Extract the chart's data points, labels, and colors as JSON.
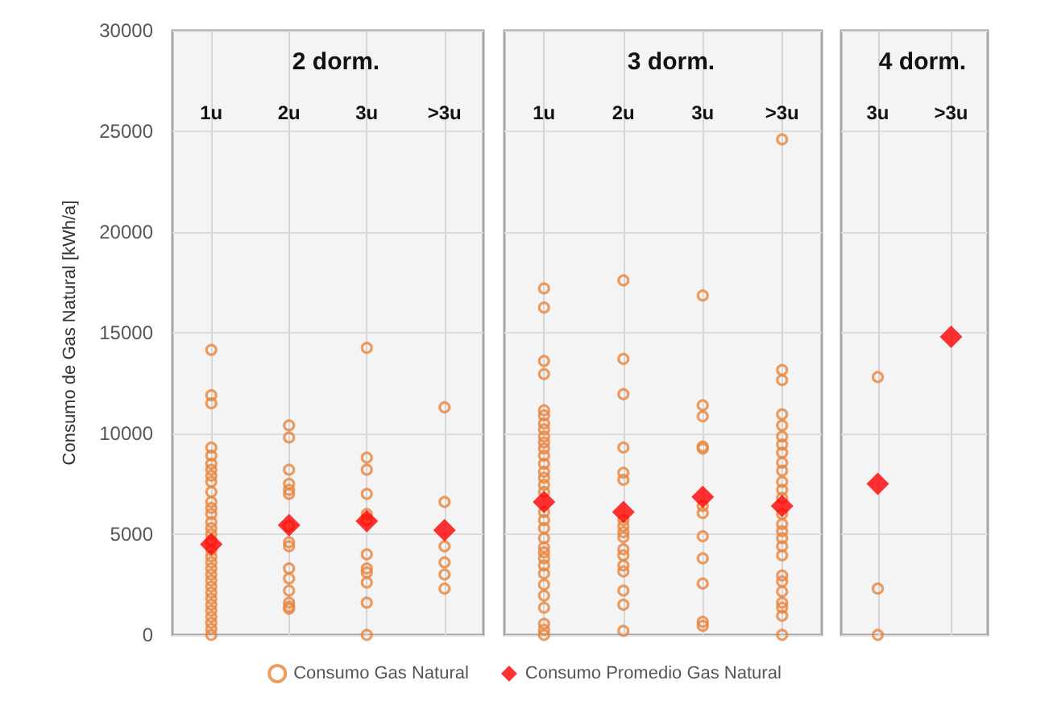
{
  "chart_data": [
    {
      "type": "scatter",
      "title": "2 dorm.",
      "ylabel": "Consumo de Gas Natural [kWh/a]",
      "categories": [
        "1u",
        "2u",
        "3u",
        ">3u"
      ],
      "ylim": [
        0,
        30000
      ],
      "yticks": [
        0,
        5000,
        10000,
        15000,
        20000,
        25000,
        30000
      ],
      "grid": true,
      "legend": "bottom",
      "series": [
        {
          "name": "Consumo Gas Natural",
          "color": "#e8843c",
          "marker": "circle",
          "x": [
            "1u",
            "1u",
            "1u",
            "1u",
            "1u",
            "1u",
            "1u",
            "1u",
            "1u",
            "1u",
            "1u",
            "1u",
            "1u",
            "1u",
            "1u",
            "1u",
            "1u",
            "1u",
            "1u",
            "1u",
            "1u",
            "1u",
            "1u",
            "1u",
            "1u",
            "1u",
            "1u",
            "1u",
            "1u",
            "1u",
            "1u",
            "1u",
            "2u",
            "2u",
            "2u",
            "2u",
            "2u",
            "2u",
            "2u",
            "2u",
            "2u",
            "2u",
            "2u",
            "2u",
            "2u",
            "2u",
            "2u",
            "3u",
            "3u",
            "3u",
            "3u",
            "3u",
            "3u",
            "3u",
            "3u",
            "3u",
            "3u",
            "3u",
            "3u",
            ">3u",
            ">3u",
            ">3u",
            ">3u",
            ">3u",
            ">3u"
          ],
          "values": [
            14150,
            11900,
            11500,
            9300,
            8900,
            8500,
            8200,
            7900,
            7600,
            7100,
            6600,
            6300,
            6000,
            5600,
            5300,
            5000,
            4700,
            4200,
            3900,
            3600,
            3300,
            3000,
            2700,
            2400,
            2100,
            1800,
            1500,
            1200,
            900,
            600,
            300,
            0,
            10400,
            9800,
            8200,
            7500,
            7200,
            7000,
            5400,
            4600,
            4400,
            3300,
            2800,
            2200,
            1600,
            1400,
            1300,
            14250,
            8800,
            8200,
            7000,
            6000,
            5700,
            4000,
            3300,
            3100,
            2600,
            1600,
            0,
            11300,
            6600,
            4400,
            3600,
            3000,
            2300
          ]
        },
        {
          "name": "Consumo Promedio Gas Natural",
          "color": "#ff0000",
          "marker": "diamond",
          "x": [
            "1u",
            "2u",
            "3u",
            ">3u"
          ],
          "values": [
            4500,
            5450,
            5650,
            5200
          ]
        }
      ]
    },
    {
      "type": "scatter",
      "title": "3 dorm.",
      "categories": [
        "1u",
        "2u",
        "3u",
        ">3u"
      ],
      "ylim": [
        0,
        30000
      ],
      "yticks": [
        0,
        5000,
        10000,
        15000,
        20000,
        25000,
        30000
      ],
      "grid": true,
      "tick_labels": "x",
      "series": [
        {
          "color": "#e8843c",
          "marker": "circle",
          "x": [
            "1u",
            "1u",
            "1u",
            "1u",
            "1u",
            "1u",
            "1u",
            "1u",
            "1u",
            "1u",
            "1u",
            "1u",
            "1u",
            "1u",
            "1u",
            "1u",
            "1u",
            "1u",
            "1u",
            "1u",
            "1u",
            "1u",
            "1u",
            "1u",
            "1u",
            "1u",
            "1u",
            "1u",
            "1u",
            "1u",
            "1u",
            "1u",
            "2u",
            "2u",
            "2u",
            "2u",
            "2u",
            "2u",
            "2u",
            "2u",
            "2u",
            "2u",
            "2u",
            "2u",
            "2u",
            "2u",
            "2u",
            "2u",
            "2u",
            "3u",
            "3u",
            "3u",
            "3u",
            "3u",
            "3u",
            "3u",
            "3u",
            "3u",
            "3u",
            "3u",
            "3u",
            ">3u",
            ">3u",
            ">3u",
            ">3u",
            ">3u",
            ">3u",
            ">3u",
            ">3u",
            ">3u",
            ">3u",
            ">3u",
            ">3u",
            ">3u",
            ">3u",
            ">3u",
            ">3u",
            ">3u",
            ">3u",
            ">3u",
            ">3u",
            ">3u",
            ">3u",
            ">3u",
            ">3u",
            ">3u",
            ">3u"
          ],
          "values": [
            17200,
            16250,
            13600,
            12950,
            11150,
            10900,
            10500,
            10200,
            9850,
            9550,
            9250,
            8900,
            8500,
            8100,
            7800,
            7450,
            7100,
            6100,
            5700,
            5300,
            4800,
            4350,
            4100,
            3800,
            3450,
            3050,
            2500,
            1950,
            1350,
            550,
            250,
            0,
            17600,
            13700,
            11950,
            9300,
            8050,
            7700,
            5700,
            5400,
            5100,
            4850,
            4250,
            3950,
            3450,
            3150,
            2200,
            1500,
            200,
            16850,
            11400,
            10850,
            9350,
            9250,
            6400,
            6050,
            4900,
            3800,
            2550,
            650,
            450,
            24600,
            13150,
            12650,
            10950,
            10400,
            9850,
            9450,
            9050,
            8550,
            8150,
            7600,
            7200,
            6800,
            6000,
            5500,
            5150,
            4800,
            4400,
            3950,
            2950,
            2650,
            2150,
            1600,
            1350,
            950,
            0
          ]
        },
        {
          "color": "#ff0000",
          "marker": "diamond",
          "x": [
            "1u",
            "2u",
            "3u",
            ">3u"
          ],
          "values": [
            6600,
            6100,
            6850,
            6400
          ]
        }
      ]
    },
    {
      "type": "scatter",
      "title": "4 dorm.",
      "categories": [
        "3u",
        ">3u"
      ],
      "ylim": [
        0,
        30000
      ],
      "yticks": [
        0,
        5000,
        10000,
        15000,
        20000,
        25000,
        30000
      ],
      "grid": true,
      "tick_labels": "x",
      "series": [
        {
          "color": "#e8843c",
          "marker": "circle",
          "x": [
            "3u",
            "3u",
            "3u"
          ],
          "values": [
            12800,
            2300,
            0
          ]
        },
        {
          "color": "#ff0000",
          "marker": "diamond",
          "x": [
            "3u",
            ">3u"
          ],
          "values": [
            7500,
            14800
          ]
        }
      ]
    }
  ]
}
